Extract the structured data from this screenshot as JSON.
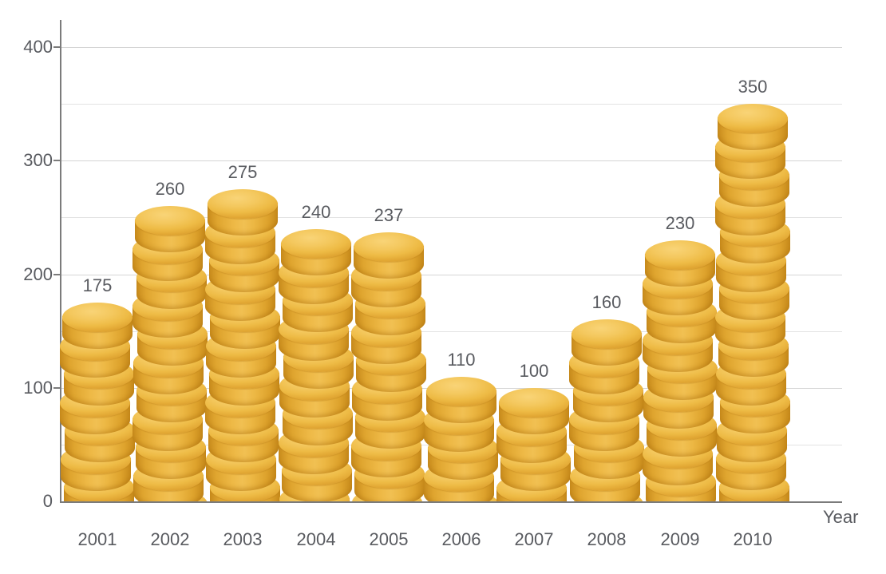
{
  "chart_data": {
    "type": "bar",
    "title": "",
    "categories": [
      "2001",
      "2002",
      "2003",
      "2004",
      "2005",
      "2006",
      "2007",
      "2008",
      "2009",
      "2010"
    ],
    "values": [
      175,
      260,
      275,
      240,
      237,
      110,
      100,
      160,
      230,
      350
    ],
    "xlabel": "Year",
    "ylabel": "",
    "ylim": [
      0,
      400
    ],
    "yticks": [
      0,
      100,
      200,
      300,
      400
    ],
    "ytick_labels": [
      "0",
      "100",
      "200",
      "300",
      "400"
    ],
    "grid_step": 50,
    "grid_on": true,
    "legend_position": "none",
    "bar_style": "stacked-gold-coins"
  },
  "colors": {
    "background": "#ffffff",
    "coin_face_highlight": "#f9d477",
    "coin_face": "#f2c355",
    "coin_face_edge": "#dda231",
    "coin_side_light": "#f1c052",
    "coin_side_dark": "#c98c1d",
    "grid_major": "#d5d5d5",
    "grid_minor": "#e2e2e2",
    "axis_line": "#7b7b7b",
    "label_text": "#595b60"
  }
}
